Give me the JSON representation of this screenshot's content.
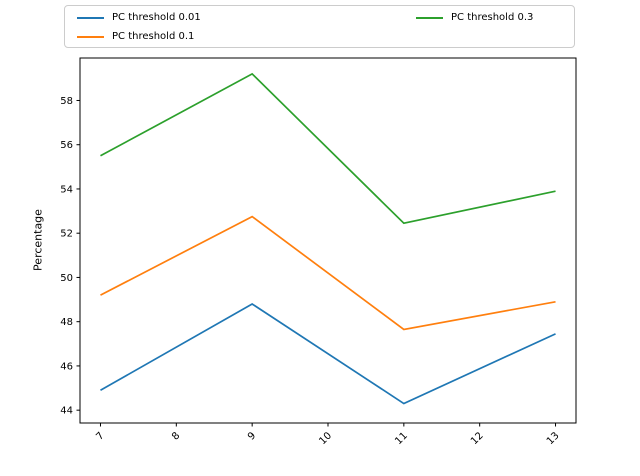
{
  "chart_data": {
    "type": "line",
    "x": [
      7,
      9,
      11,
      13
    ],
    "xticks": [
      7,
      8,
      9,
      10,
      11,
      12,
      13
    ],
    "yticks": [
      44,
      46,
      48,
      50,
      52,
      54,
      56,
      58
    ],
    "series": [
      {
        "name": "PC threshold 0.01",
        "color": "#1f77b4",
        "values": [
          44.9,
          48.8,
          44.3,
          47.45
        ]
      },
      {
        "name": "PC threshold 0.1",
        "color": "#ff7f0e",
        "values": [
          49.2,
          52.75,
          47.65,
          48.9
        ]
      },
      {
        "name": "PC threshold 0.3",
        "color": "#2ca02c",
        "values": [
          55.5,
          59.2,
          52.45,
          53.9
        ]
      }
    ],
    "title": "",
    "xlabel": "",
    "ylabel": "Percentage",
    "xlim": [
      6.73,
      13.27
    ],
    "ylim": [
      43.42,
      59.92
    ],
    "grid": false,
    "legend_position": "top",
    "legend_columns": 2,
    "axis_color": "#000000",
    "background_color": "#ffffff"
  }
}
